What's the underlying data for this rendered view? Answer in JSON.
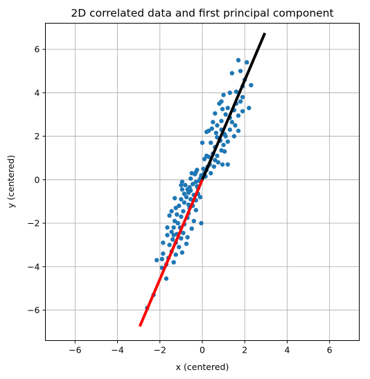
{
  "chart_data": {
    "type": "scatter",
    "title": "2D correlated data and first principal component",
    "xlabel": "x (centered)",
    "ylabel": "y (centered)",
    "xlim": [
      -7.4,
      7.4
    ],
    "ylim": [
      -7.4,
      7.2
    ],
    "xticks": [
      -6,
      -4,
      -2,
      0,
      2,
      4,
      6
    ],
    "yticks": [
      -6,
      -4,
      -2,
      0,
      2,
      4,
      6
    ],
    "grid": true,
    "colors": {
      "points": "#1f77b4",
      "pc_positive": "#000000",
      "pc_negative": "#ff0000"
    },
    "pc_line_positive": {
      "x": [
        0,
        2.95
      ],
      "y": [
        0,
        6.75
      ]
    },
    "pc_line_negative": {
      "x": [
        0,
        -2.95
      ],
      "y": [
        0,
        -6.75
      ]
    },
    "points": [
      [
        1.7,
        5.5
      ],
      [
        2.1,
        5.4
      ],
      [
        1.8,
        5.0
      ],
      [
        1.4,
        4.9
      ],
      [
        2.3,
        4.35
      ],
      [
        1.9,
        4.3
      ],
      [
        1.6,
        4.05
      ],
      [
        2.0,
        4.6
      ],
      [
        1.3,
        4.0
      ],
      [
        1.0,
        3.9
      ],
      [
        1.9,
        3.8
      ],
      [
        1.8,
        3.6
      ],
      [
        1.2,
        3.3
      ],
      [
        0.8,
        3.5
      ],
      [
        0.9,
        3.6
      ],
      [
        1.6,
        3.5
      ],
      [
        1.1,
        3.0
      ],
      [
        1.5,
        3.2
      ],
      [
        0.6,
        3.05
      ],
      [
        1.7,
        2.95
      ],
      [
        1.9,
        3.15
      ],
      [
        2.2,
        3.3
      ],
      [
        1.3,
        2.85
      ],
      [
        1.55,
        2.5
      ],
      [
        1.7,
        2.25
      ],
      [
        1.4,
        2.65
      ],
      [
        0.9,
        2.7
      ],
      [
        0.7,
        2.5
      ],
      [
        0.5,
        2.65
      ],
      [
        0.3,
        2.25
      ],
      [
        0.2,
        2.2
      ],
      [
        0.45,
        2.35
      ],
      [
        0.9,
        2.3
      ],
      [
        1.05,
        2.1
      ],
      [
        1.2,
        1.75
      ],
      [
        1.1,
        2.0
      ],
      [
        0.7,
        1.95
      ],
      [
        0.4,
        1.7
      ],
      [
        0.6,
        1.5
      ],
      [
        0.9,
        1.35
      ],
      [
        1.05,
        1.3
      ],
      [
        0.5,
        1.2
      ],
      [
        0.3,
        1.05
      ],
      [
        0.0,
        1.7
      ],
      [
        0.1,
        0.95
      ],
      [
        1.2,
        0.7
      ],
      [
        0.95,
        0.7
      ],
      [
        0.75,
        0.8
      ],
      [
        0.6,
        0.9
      ],
      [
        0.55,
        0.6
      ],
      [
        0.35,
        0.7
      ],
      [
        0.25,
        0.6
      ],
      [
        0.2,
        0.45
      ],
      [
        0.1,
        0.3
      ],
      [
        -0.05,
        0.2
      ],
      [
        -0.25,
        0.45
      ],
      [
        -0.3,
        0.35
      ],
      [
        0.05,
        0.5
      ],
      [
        0.15,
        0.15
      ],
      [
        -0.1,
        0.05
      ],
      [
        -0.35,
        0.25
      ],
      [
        -0.5,
        0.3
      ],
      [
        -0.15,
        -0.05
      ],
      [
        -0.3,
        -0.1
      ],
      [
        -0.45,
        -0.2
      ],
      [
        -0.6,
        -0.35
      ],
      [
        -0.7,
        -0.45
      ],
      [
        -0.95,
        -0.1
      ],
      [
        -1.0,
        -0.25
      ],
      [
        -0.8,
        -0.25
      ],
      [
        -0.55,
        -0.5
      ],
      [
        -0.65,
        -0.6
      ],
      [
        -0.95,
        -0.45
      ],
      [
        -0.4,
        -0.7
      ],
      [
        -0.2,
        -0.65
      ],
      [
        -0.1,
        -0.8
      ],
      [
        -0.3,
        -0.95
      ],
      [
        -0.55,
        -0.9
      ],
      [
        -0.75,
        -0.8
      ],
      [
        -1.0,
        -0.9
      ],
      [
        -1.3,
        -0.85
      ],
      [
        -0.85,
        -1.05
      ],
      [
        -0.65,
        -1.15
      ],
      [
        -0.45,
        -1.2
      ],
      [
        -1.1,
        -1.2
      ],
      [
        -1.45,
        -1.45
      ],
      [
        -0.9,
        -1.45
      ],
      [
        -0.65,
        -1.55
      ],
      [
        -0.3,
        -1.4
      ],
      [
        -1.2,
        -1.6
      ],
      [
        -1.55,
        -1.65
      ],
      [
        -1.0,
        -1.7
      ],
      [
        -0.7,
        -1.75
      ],
      [
        -0.4,
        -1.9
      ],
      [
        -1.3,
        -1.9
      ],
      [
        -0.05,
        -2.0
      ],
      [
        -1.15,
        -2.0
      ],
      [
        -0.85,
        -2.05
      ],
      [
        -1.65,
        -2.2
      ],
      [
        -1.35,
        -2.2
      ],
      [
        -1.05,
        -2.2
      ],
      [
        -0.5,
        -2.25
      ],
      [
        -1.45,
        -2.4
      ],
      [
        -1.2,
        -2.5
      ],
      [
        -0.9,
        -2.45
      ],
      [
        -1.65,
        -2.55
      ],
      [
        -0.7,
        -2.65
      ],
      [
        -1.0,
        -2.7
      ],
      [
        -1.4,
        -2.75
      ],
      [
        -1.85,
        -2.9
      ],
      [
        -1.25,
        -2.9
      ],
      [
        -0.75,
        -2.95
      ],
      [
        -1.55,
        -3.0
      ],
      [
        -1.1,
        -3.1
      ],
      [
        -1.45,
        -3.3
      ],
      [
        -1.85,
        -3.4
      ],
      [
        -0.95,
        -3.35
      ],
      [
        -1.25,
        -3.45
      ],
      [
        -1.6,
        -3.6
      ],
      [
        -1.9,
        -3.65
      ],
      [
        -2.15,
        -3.7
      ],
      [
        -1.35,
        -3.8
      ],
      [
        -1.7,
        -3.9
      ],
      [
        -1.9,
        -4.05
      ],
      [
        -1.7,
        -4.55
      ],
      [
        -2.3,
        -5.3
      ],
      [
        -2.6,
        -5.9
      ],
      [
        1.3,
        2.3
      ],
      [
        0.85,
        1.8
      ],
      [
        1.5,
        2.0
      ],
      [
        0.2,
        1.1
      ],
      [
        0.7,
        1.1
      ],
      [
        -0.2,
        -0.4
      ],
      [
        -0.85,
        -0.65
      ],
      [
        -1.25,
        -1.3
      ],
      [
        0.65,
        2.15
      ],
      [
        1.0,
        1.6
      ],
      [
        -0.55,
        0.05
      ],
      [
        -0.25,
        -0.3
      ],
      [
        -0.6,
        -1.3
      ],
      [
        -1.35,
        -2.55
      ],
      [
        0.4,
        0.3
      ],
      [
        0.95,
        3.25
      ]
    ]
  }
}
